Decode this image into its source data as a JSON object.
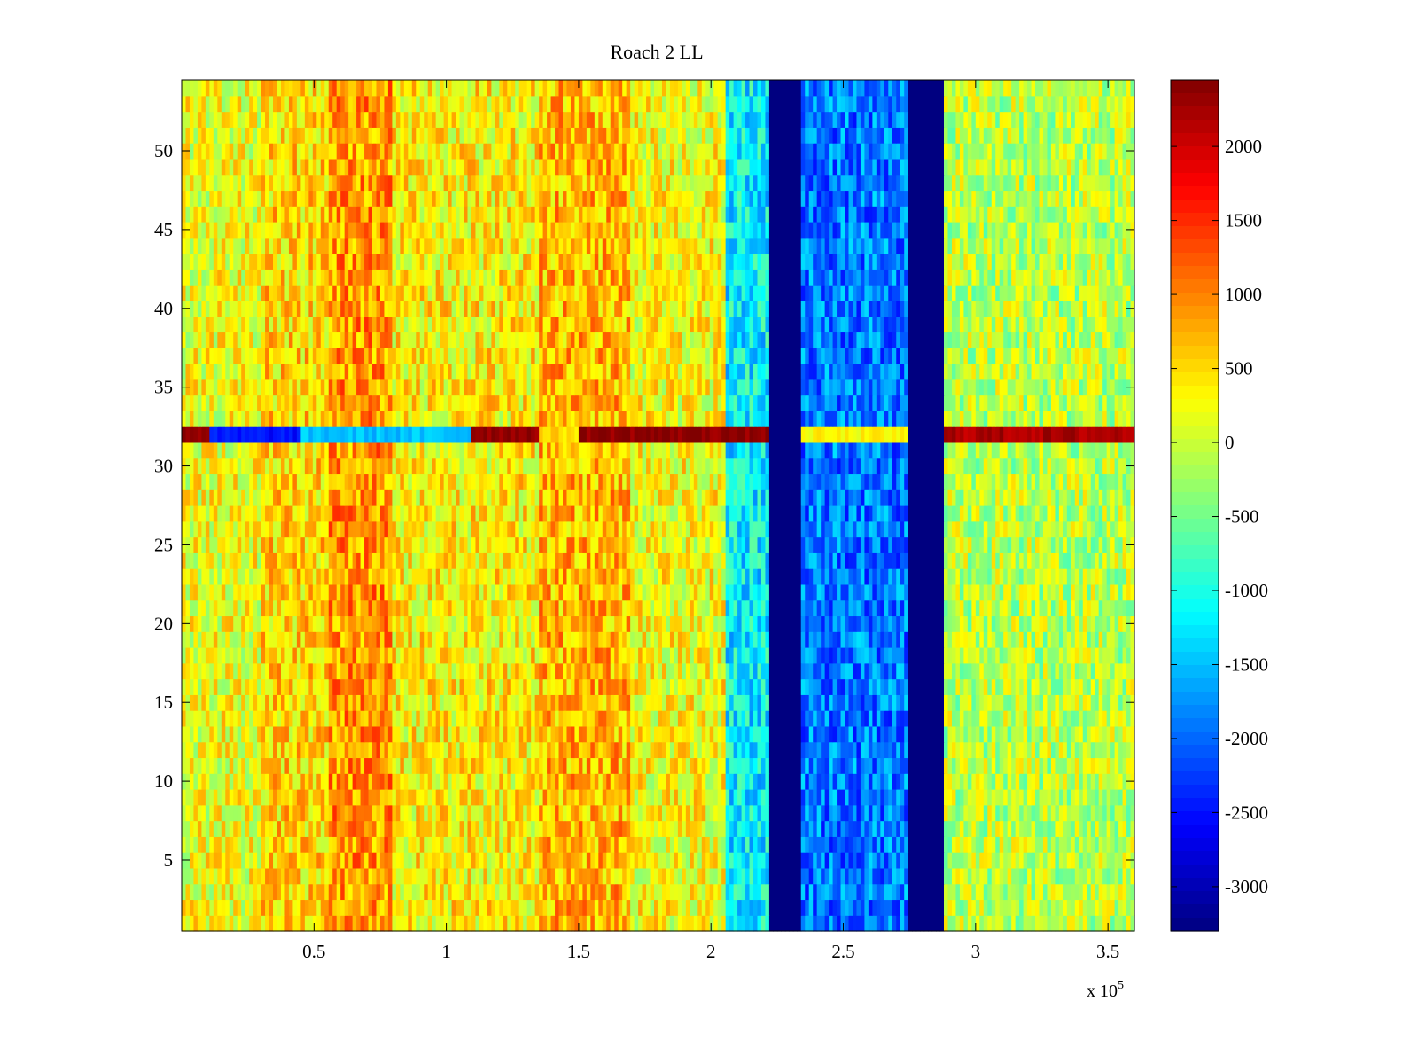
{
  "chart_data": {
    "type": "heatmap",
    "title": "Roach 2 LL",
    "xlabel": "",
    "ylabel": "",
    "x_multiplier": "x 10",
    "x_multiplier_exponent": "5",
    "xlim": [
      0,
      3.6
    ],
    "ylim": [
      0.5,
      54.5
    ],
    "x_ticks": [
      0.5,
      1,
      1.5,
      2,
      2.5,
      3,
      3.5
    ],
    "x_tick_labels": [
      "0.5",
      "1",
      "1.5",
      "2",
      "2.5",
      "3",
      "3.5"
    ],
    "y_ticks": [
      5,
      10,
      15,
      20,
      25,
      30,
      35,
      40,
      45,
      50
    ],
    "y_tick_labels": [
      "5",
      "10",
      "15",
      "20",
      "25",
      "30",
      "35",
      "40",
      "45",
      "50"
    ],
    "rows": 54,
    "colormap": "jet",
    "colorbar": {
      "range": [
        -3300,
        2450
      ],
      "ticks": [
        2000,
        1500,
        1000,
        500,
        0,
        -500,
        -1000,
        -1500,
        -2000,
        -2500,
        -3000
      ],
      "tick_labels": [
        "2000",
        "1500",
        "1000",
        "500",
        "0",
        "-500",
        "-1000",
        "-1500",
        "-2000",
        "-2500",
        "-3000"
      ]
    },
    "column_profile": [
      {
        "x_from": 0.0,
        "x_to": 0.3,
        "value": 200
      },
      {
        "x_from": 0.3,
        "x_to": 0.55,
        "value": 500
      },
      {
        "x_from": 0.55,
        "x_to": 0.8,
        "value": 900
      },
      {
        "x_from": 0.8,
        "x_to": 1.35,
        "value": 350
      },
      {
        "x_from": 1.35,
        "x_to": 1.7,
        "value": 700
      },
      {
        "x_from": 1.7,
        "x_to": 2.05,
        "value": 250
      },
      {
        "x_from": 2.05,
        "x_to": 2.22,
        "value": -1200
      },
      {
        "x_from": 2.22,
        "x_to": 2.34,
        "value": -3300
      },
      {
        "x_from": 2.34,
        "x_to": 2.75,
        "value": -1900
      },
      {
        "x_from": 2.75,
        "x_to": 2.88,
        "value": -3300
      },
      {
        "x_from": 2.88,
        "x_to": 3.6,
        "value": -100
      }
    ],
    "anomalous_row": {
      "y": 32,
      "segments": [
        {
          "x_from": 0.0,
          "x_to": 0.1,
          "value": 2400
        },
        {
          "x_from": 0.1,
          "x_to": 0.45,
          "value": -2500
        },
        {
          "x_from": 0.45,
          "x_to": 1.1,
          "value": -1500
        },
        {
          "x_from": 1.1,
          "x_to": 1.35,
          "value": 2400
        },
        {
          "x_from": 1.35,
          "x_to": 1.5,
          "value": 500
        },
        {
          "x_from": 1.5,
          "x_to": 2.22,
          "value": 2400
        },
        {
          "x_from": 2.22,
          "x_to": 2.34,
          "value": -3300
        },
        {
          "x_from": 2.34,
          "x_to": 2.75,
          "value": 300
        },
        {
          "x_from": 2.75,
          "x_to": 2.88,
          "value": -3300
        },
        {
          "x_from": 2.88,
          "x_to": 3.6,
          "value": 2200
        }
      ]
    }
  }
}
